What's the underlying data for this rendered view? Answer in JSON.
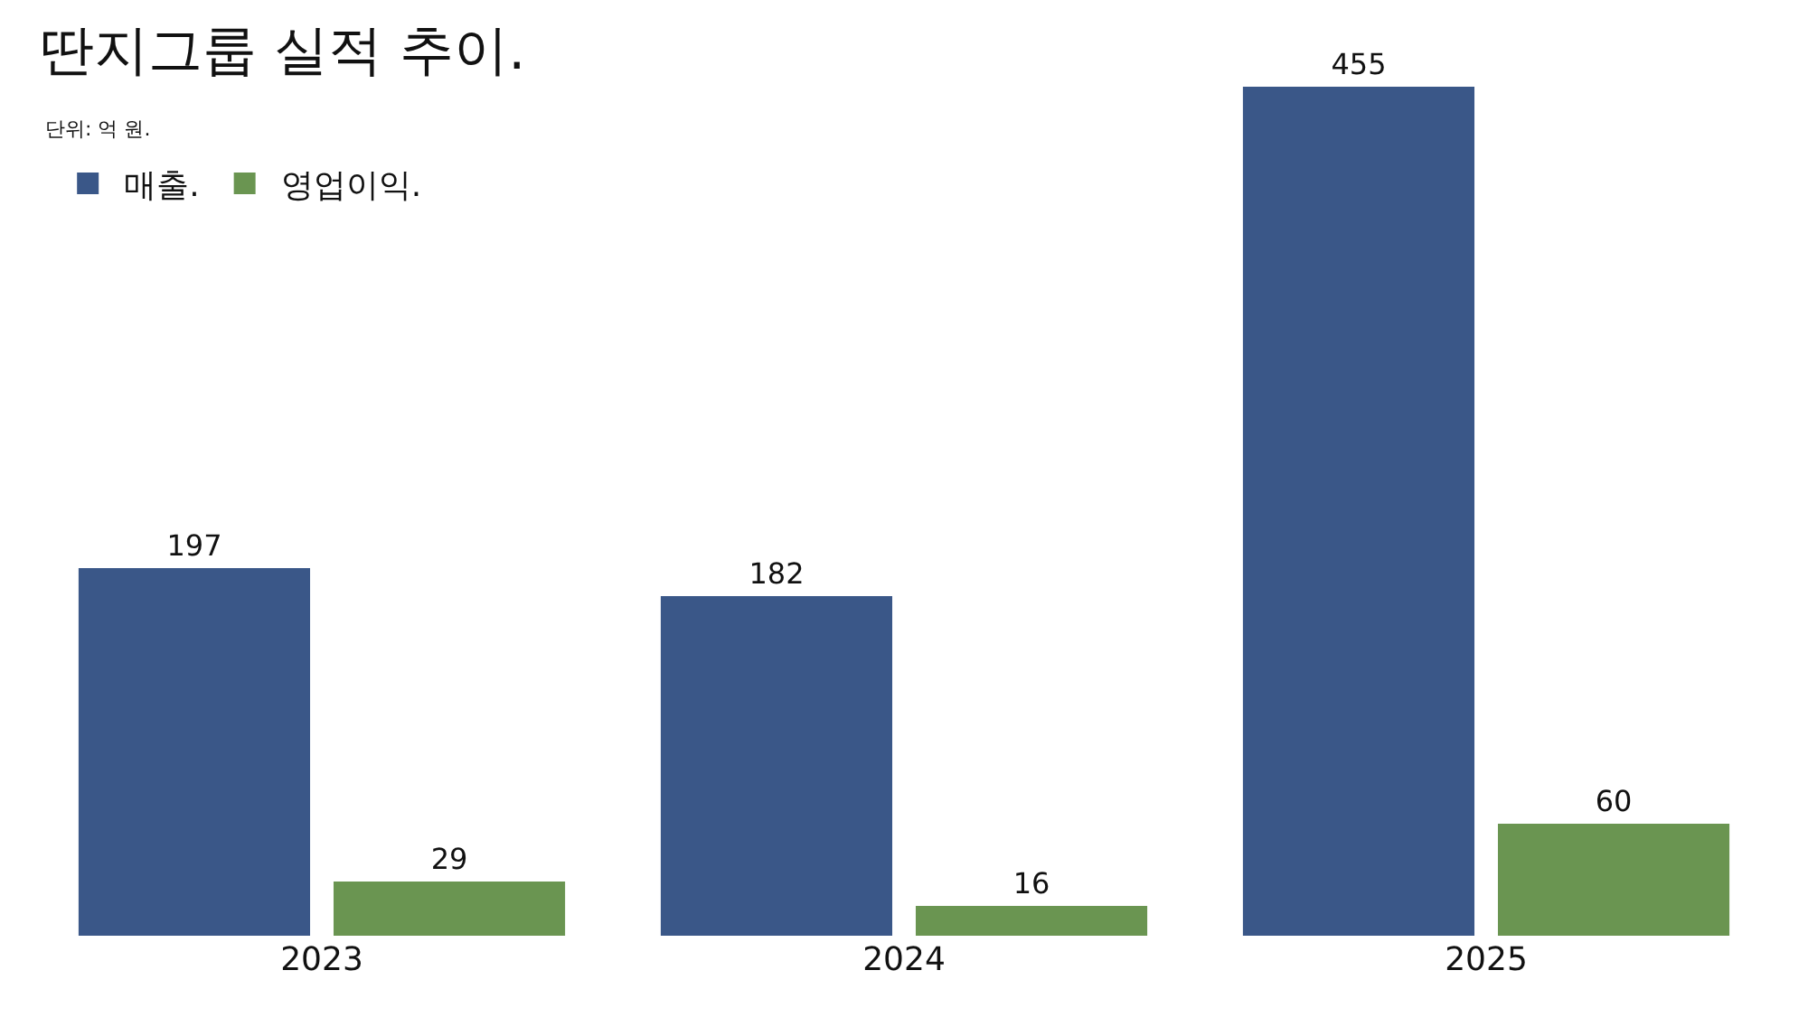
{
  "chart_data": {
    "type": "bar",
    "title": "딴지그룹 실적 추이.",
    "subtitle": "단위: 억 원.",
    "categories": [
      "2023",
      "2024",
      "2025"
    ],
    "series": [
      {
        "name": "매출.",
        "color": "#3a5788",
        "values": [
          197,
          182,
          455
        ]
      },
      {
        "name": "영업이익.",
        "color": "#6a9551",
        "values": [
          29,
          16,
          60
        ]
      }
    ],
    "ylim": [
      0,
      455
    ],
    "tick_labels": "x",
    "data_labels": true,
    "legend": "top left"
  }
}
